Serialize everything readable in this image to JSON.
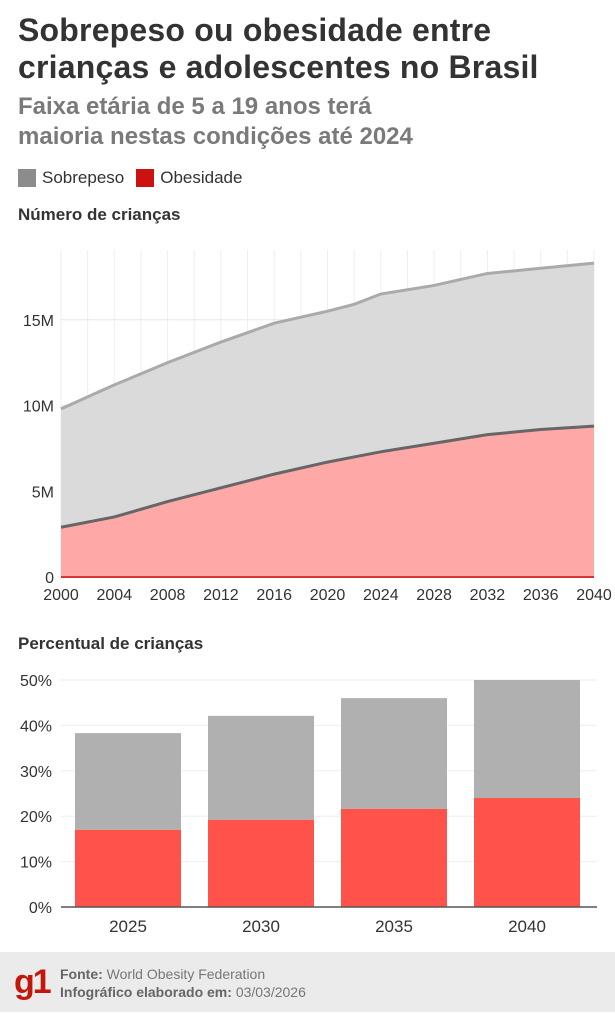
{
  "header": {
    "title_line1": "Sobrepeso ou obesidade entre",
    "title_line2": "crianças e adolescentes no Brasil",
    "subtitle_line1": "Faixa etária de 5 a 19 anos terá",
    "subtitle_line2": "maioria nestas condições até 2024"
  },
  "legend": [
    {
      "label": "Sobrepeso",
      "color": "#8c8c8c"
    },
    {
      "label": "Obesidade",
      "color": "#cc1111"
    }
  ],
  "chart_data": [
    {
      "type": "area",
      "stacked": true,
      "title": "Número de crianças",
      "x": [
        2000,
        2004,
        2008,
        2012,
        2016,
        2020,
        2022,
        2024,
        2028,
        2032,
        2036,
        2040
      ],
      "series": [
        {
          "name": "Obesidade",
          "color": "#ffa8a8",
          "line_color": "#666666",
          "values": [
            2.9,
            3.5,
            4.4,
            5.2,
            6.0,
            6.7,
            7.0,
            7.3,
            7.8,
            8.3,
            8.6,
            8.8
          ]
        },
        {
          "name": "Sobrepeso",
          "color": "#dadada",
          "line_color": "#aaaaaa",
          "values": [
            6.9,
            7.7,
            8.1,
            8.5,
            8.8,
            8.8,
            8.9,
            9.2,
            9.2,
            9.4,
            9.4,
            9.5
          ]
        }
      ],
      "unit": "milhões",
      "ylim": [
        0,
        18.5
      ],
      "yticks": [
        {
          "v": 0,
          "label": "0"
        },
        {
          "v": 5,
          "label": "5M"
        },
        {
          "v": 10,
          "label": "10M"
        },
        {
          "v": 15,
          "label": "15M"
        }
      ],
      "xticks": [
        "2000",
        "2004",
        "2008",
        "2012",
        "2016",
        "2020",
        "2024",
        "2028",
        "2032",
        "2036",
        "2040"
      ],
      "grid": true
    },
    {
      "type": "bar",
      "stacked": true,
      "title": "Percentual de crianças",
      "categories": [
        "2025",
        "2030",
        "2035",
        "2040"
      ],
      "series": [
        {
          "name": "Obesidade",
          "color": "#ff524a",
          "values": [
            17.0,
            19.2,
            21.6,
            24.0
          ]
        },
        {
          "name": "Sobrepeso",
          "color": "#b0b0b0",
          "values": [
            21.3,
            22.9,
            24.4,
            26.0
          ]
        }
      ],
      "unit": "%",
      "ylim": [
        0,
        50
      ],
      "yticks": [
        "0%",
        "10%",
        "20%",
        "30%",
        "40%",
        "50%"
      ],
      "grid": true
    }
  ],
  "footer": {
    "logo": "g1",
    "source_label": "Fonte:",
    "source_value": "World Obesity Federation",
    "date_label": "Infográfico elaborado em:",
    "date_value": "03/03/2026"
  }
}
